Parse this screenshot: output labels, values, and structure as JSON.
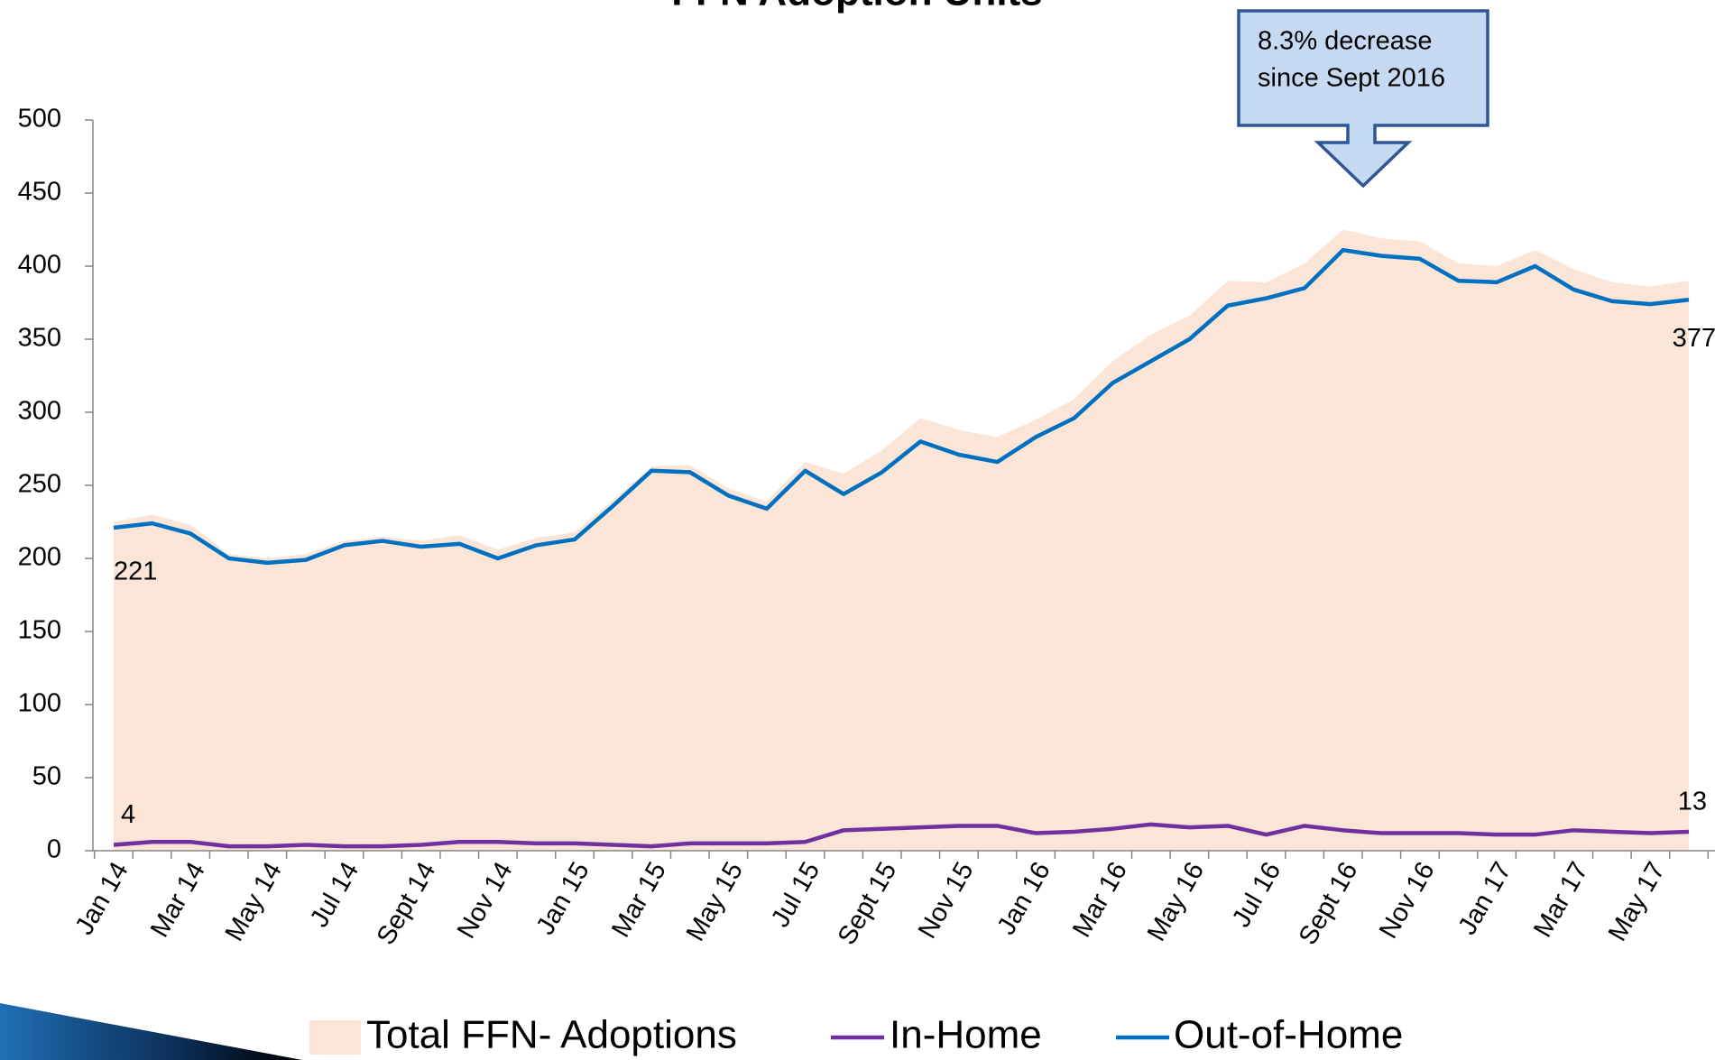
{
  "chart_data": {
    "type": "line",
    "title": "FFN Adoption Units",
    "categories": [
      "Jan 14",
      null,
      "Mar 14",
      null,
      "May 14",
      null,
      "Jul 14",
      null,
      "Sept 14",
      null,
      "Nov 14",
      null,
      "Jan 15",
      null,
      "Mar 15",
      null,
      "May 15",
      null,
      "Jul 15",
      null,
      "Sept 15",
      null,
      "Nov 15",
      null,
      "Jan 16",
      null,
      "Mar 16",
      null,
      "May 16",
      null,
      "Jul 16",
      null,
      "Sept 16",
      null,
      "Nov 16",
      null,
      "Jan 17",
      null,
      "Mar 17",
      null,
      "May 17",
      null
    ],
    "series": [
      {
        "name": "Total FFN- Adoptions",
        "type": "area",
        "color": "#fbe5d6",
        "values": [
          225,
          230,
          223,
          203,
          200,
          203,
          212,
          215,
          212,
          216,
          206,
          214,
          218,
          240,
          263,
          264,
          248,
          239,
          266,
          258,
          274,
          296,
          288,
          283,
          295,
          309,
          335,
          353,
          366,
          390,
          389,
          402,
          425,
          419,
          417,
          402,
          400,
          411,
          398,
          389,
          386,
          390
        ]
      },
      {
        "name": "In-Home",
        "type": "line",
        "color": "#7030a0",
        "values": [
          4,
          6,
          6,
          3,
          3,
          4,
          3,
          3,
          4,
          6,
          6,
          5,
          5,
          4,
          3,
          5,
          5,
          5,
          6,
          14,
          15,
          16,
          17,
          17,
          12,
          13,
          15,
          18,
          16,
          17,
          11,
          17,
          14,
          12,
          12,
          12,
          11,
          11,
          14,
          13,
          12,
          13
        ]
      },
      {
        "name": "Out-of-Home",
        "type": "line",
        "color": "#0070c0",
        "values": [
          221,
          224,
          217,
          200,
          197,
          199,
          209,
          212,
          208,
          210,
          200,
          209,
          213,
          236,
          260,
          259,
          243,
          234,
          260,
          244,
          259,
          280,
          271,
          266,
          283,
          296,
          320,
          335,
          350,
          373,
          378,
          385,
          411,
          407,
          405,
          390,
          389,
          400,
          384,
          376,
          374,
          377
        ]
      }
    ],
    "ylim": [
      0,
      500
    ],
    "yticks": [
      0,
      50,
      100,
      150,
      200,
      250,
      300,
      350,
      400,
      450,
      500
    ],
    "annotation": [
      "8.3% decrease",
      "since Sept 2016"
    ]
  }
}
